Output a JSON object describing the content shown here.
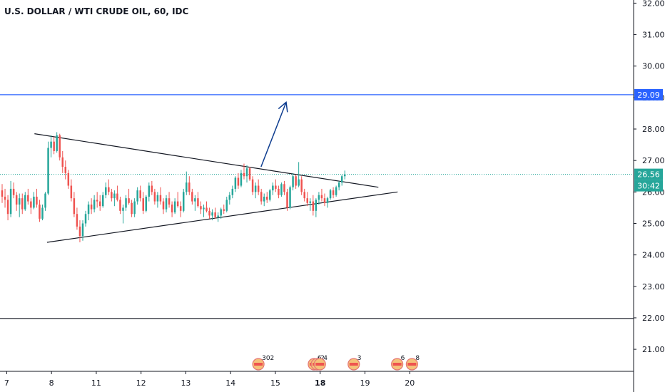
{
  "colors": {
    "up": "#26a69a",
    "down": "#ef5350",
    "resistance": "#2962ff",
    "arrow": "#0d3c8f",
    "lastPriceLine": "#26a69a",
    "support": "#131722",
    "triangle": "#131722",
    "axisLine": "#131722",
    "grid": "#ffffff"
  },
  "chart_data": {
    "type": "candlestick",
    "title": "U.S. DOLLAR / WTI CRUDE OIL, 60, IDC",
    "ylim": [
      20.3,
      32.1
    ],
    "xlim": [
      6.85,
      21.0
    ],
    "y_ticks": [
      21,
      22,
      23,
      24,
      25,
      26,
      27,
      28,
      29,
      30,
      31,
      32
    ],
    "y_tick_labels": [
      "21.00",
      "22.00",
      "23.00",
      "24.00",
      "25.00",
      "26.00",
      "27.00",
      "28.00",
      "29.00",
      "30.00",
      "31.00",
      "32.00"
    ],
    "x_ticks": [
      7,
      8,
      11,
      12,
      13,
      14,
      15,
      18,
      19,
      20
    ],
    "x_tick_labels": [
      "7",
      "8",
      "11",
      "12",
      "13",
      "14",
      "15",
      "18",
      "19",
      "20"
    ],
    "x_ticks_bold": [
      "18"
    ],
    "x_tick_positions": [
      7.0,
      8.0,
      9.0,
      10.0,
      11.0,
      12.0,
      13.0,
      14.0,
      15.0,
      16.0
    ],
    "candles": [
      [
        26.05,
        26.25,
        25.65,
        25.85
      ],
      [
        25.85,
        26.1,
        25.5,
        25.75
      ],
      [
        25.75,
        25.9,
        25.1,
        25.3
      ],
      [
        25.3,
        26.35,
        25.2,
        26.1
      ],
      [
        26.1,
        26.3,
        25.8,
        25.9
      ],
      [
        25.9,
        26.0,
        25.4,
        25.6
      ],
      [
        25.6,
        25.95,
        25.2,
        25.8
      ],
      [
        25.8,
        25.95,
        25.3,
        25.45
      ],
      [
        25.45,
        26.0,
        25.4,
        25.9
      ],
      [
        25.9,
        26.1,
        25.6,
        25.7
      ],
      [
        25.7,
        25.8,
        25.3,
        25.5
      ],
      [
        25.5,
        26.0,
        25.45,
        25.85
      ],
      [
        25.85,
        26.1,
        25.5,
        25.6
      ],
      [
        25.6,
        25.75,
        25.05,
        25.15
      ],
      [
        25.15,
        25.6,
        25.1,
        25.5
      ],
      [
        25.5,
        26.0,
        25.4,
        25.95
      ],
      [
        25.95,
        27.6,
        25.9,
        27.4
      ],
      [
        27.4,
        27.8,
        27.1,
        27.6
      ],
      [
        27.6,
        27.75,
        27.2,
        27.3
      ],
      [
        27.3,
        27.9,
        27.25,
        27.8
      ],
      [
        27.8,
        27.85,
        27.0,
        27.1
      ],
      [
        27.1,
        27.3,
        26.6,
        26.8
      ],
      [
        26.8,
        27.0,
        26.4,
        26.6
      ],
      [
        26.6,
        26.7,
        26.1,
        26.2
      ],
      [
        26.2,
        26.4,
        25.7,
        25.8
      ],
      [
        25.8,
        26.0,
        25.2,
        25.3
      ],
      [
        25.3,
        25.5,
        24.8,
        24.9
      ],
      [
        24.9,
        25.1,
        24.4,
        24.6
      ],
      [
        24.6,
        25.1,
        24.45,
        25.0
      ],
      [
        25.0,
        25.4,
        24.9,
        25.3
      ],
      [
        25.3,
        25.7,
        25.1,
        25.6
      ],
      [
        25.6,
        25.8,
        25.3,
        25.45
      ],
      [
        25.45,
        25.9,
        25.35,
        25.75
      ],
      [
        25.75,
        26.0,
        25.5,
        25.7
      ],
      [
        25.7,
        25.9,
        25.4,
        25.55
      ],
      [
        25.55,
        26.0,
        25.5,
        25.9
      ],
      [
        25.9,
        26.3,
        25.8,
        26.15
      ],
      [
        26.15,
        26.4,
        25.9,
        26.0
      ],
      [
        26.0,
        26.1,
        25.7,
        25.8
      ],
      [
        25.8,
        26.05,
        25.55,
        25.95
      ],
      [
        25.95,
        26.2,
        25.7,
        25.75
      ],
      [
        25.75,
        25.85,
        25.3,
        25.4
      ],
      [
        25.4,
        25.6,
        25.0,
        25.5
      ],
      [
        25.5,
        25.9,
        25.4,
        25.8
      ],
      [
        25.8,
        26.1,
        25.6,
        25.65
      ],
      [
        25.65,
        25.75,
        25.2,
        25.3
      ],
      [
        25.3,
        25.8,
        25.2,
        25.7
      ],
      [
        25.7,
        26.15,
        25.6,
        26.05
      ],
      [
        26.05,
        26.2,
        25.7,
        25.8
      ],
      [
        25.8,
        26.0,
        25.3,
        25.4
      ],
      [
        25.4,
        25.9,
        25.35,
        25.85
      ],
      [
        25.85,
        26.3,
        25.7,
        26.2
      ],
      [
        26.2,
        26.35,
        25.9,
        26.0
      ],
      [
        26.0,
        26.1,
        25.6,
        25.7
      ],
      [
        25.7,
        26.0,
        25.5,
        25.9
      ],
      [
        25.9,
        26.15,
        25.6,
        25.7
      ],
      [
        25.7,
        25.8,
        25.3,
        25.45
      ],
      [
        25.45,
        25.9,
        25.35,
        25.8
      ],
      [
        25.8,
        26.0,
        25.5,
        25.6
      ],
      [
        25.6,
        25.7,
        25.2,
        25.35
      ],
      [
        25.35,
        25.8,
        25.3,
        25.7
      ],
      [
        25.7,
        26.0,
        25.5,
        25.55
      ],
      [
        25.55,
        25.7,
        25.2,
        25.4
      ],
      [
        25.4,
        26.1,
        25.35,
        26.0
      ],
      [
        26.0,
        26.65,
        25.9,
        26.3
      ],
      [
        26.3,
        26.5,
        25.9,
        26.0
      ],
      [
        26.0,
        26.1,
        25.6,
        25.7
      ],
      [
        25.7,
        25.9,
        25.4,
        25.8
      ],
      [
        25.8,
        26.0,
        25.5,
        25.55
      ],
      [
        25.55,
        25.7,
        25.3,
        25.45
      ],
      [
        25.45,
        25.6,
        25.2,
        25.5
      ],
      [
        25.5,
        25.7,
        25.35,
        25.4
      ],
      [
        25.4,
        25.5,
        25.15,
        25.25
      ],
      [
        25.25,
        25.45,
        25.1,
        25.35
      ],
      [
        25.35,
        25.5,
        25.15,
        25.2
      ],
      [
        25.2,
        25.35,
        25.05,
        25.25
      ],
      [
        25.25,
        25.5,
        25.15,
        25.45
      ],
      [
        25.45,
        25.6,
        25.3,
        25.4
      ],
      [
        25.4,
        25.85,
        25.35,
        25.75
      ],
      [
        25.75,
        26.0,
        25.6,
        25.9
      ],
      [
        25.9,
        26.2,
        25.8,
        26.1
      ],
      [
        26.1,
        26.5,
        26.0,
        26.45
      ],
      [
        26.45,
        26.6,
        26.1,
        26.2
      ],
      [
        26.2,
        26.7,
        26.15,
        26.6
      ],
      [
        26.6,
        26.9,
        26.4,
        26.5
      ],
      [
        26.5,
        26.85,
        26.3,
        26.75
      ],
      [
        26.75,
        26.8,
        26.35,
        26.4
      ],
      [
        26.4,
        26.5,
        25.9,
        26.0
      ],
      [
        26.0,
        26.3,
        25.8,
        26.2
      ],
      [
        26.2,
        26.4,
        25.9,
        26.0
      ],
      [
        26.0,
        26.1,
        25.6,
        25.7
      ],
      [
        25.7,
        25.95,
        25.55,
        25.85
      ],
      [
        25.85,
        26.0,
        25.65,
        25.75
      ],
      [
        25.75,
        26.1,
        25.7,
        26.05
      ],
      [
        26.05,
        26.3,
        25.9,
        26.2
      ],
      [
        26.2,
        26.4,
        26.0,
        26.1
      ],
      [
        26.1,
        26.2,
        25.8,
        25.9
      ],
      [
        25.9,
        26.3,
        25.85,
        26.25
      ],
      [
        26.25,
        26.35,
        25.9,
        26.0
      ],
      [
        26.0,
        26.1,
        25.4,
        25.5
      ],
      [
        25.5,
        26.2,
        25.45,
        26.15
      ],
      [
        26.15,
        26.6,
        26.05,
        26.5
      ],
      [
        26.5,
        26.55,
        26.1,
        26.2
      ],
      [
        26.2,
        26.95,
        26.15,
        26.4
      ],
      [
        26.4,
        26.5,
        25.9,
        26.0
      ],
      [
        26.0,
        26.1,
        25.7,
        25.8
      ],
      [
        25.8,
        26.0,
        25.55,
        25.65
      ],
      [
        25.65,
        25.8,
        25.4,
        25.7
      ],
      [
        25.7,
        25.9,
        25.25,
        25.4
      ],
      [
        25.4,
        25.8,
        25.2,
        25.75
      ],
      [
        25.75,
        26.0,
        25.6,
        25.9
      ],
      [
        25.9,
        26.1,
        25.7,
        25.8
      ],
      [
        25.8,
        25.95,
        25.55,
        25.65
      ],
      [
        25.65,
        25.85,
        25.5,
        25.8
      ],
      [
        25.8,
        26.1,
        25.75,
        26.05
      ],
      [
        26.05,
        26.15,
        25.8,
        25.9
      ],
      [
        25.9,
        26.2,
        25.85,
        26.15
      ],
      [
        26.15,
        26.35,
        26.05,
        26.3
      ],
      [
        26.3,
        26.55,
        26.2,
        26.5
      ],
      [
        26.5,
        26.68,
        26.4,
        26.56
      ]
    ],
    "lines": {
      "resistance_level": 29.09,
      "support_level": 21.98,
      "last_price": 26.56,
      "triangle_upper": [
        [
          7.62,
          27.85
        ],
        [
          19.3,
          26.15
        ]
      ],
      "triangle_lower": [
        [
          7.9,
          24.4
        ],
        [
          19.73,
          26.0
        ]
      ],
      "arrow": [
        [
          14.68,
          26.8
        ],
        [
          15.72,
          28.85
        ]
      ]
    },
    "badges": [
      {
        "price": 29.09,
        "label": "29.09",
        "color": "#2962ff"
      },
      {
        "price": 26.56,
        "label": "26.56",
        "color": "#26a69a"
      }
    ],
    "countdown": "30:42",
    "events": [
      {
        "x": 14.62,
        "label": "302"
      },
      {
        "x": 17.58,
        "label": "6"
      },
      {
        "x": 17.78,
        "label": "2"
      },
      {
        "x": 17.98,
        "label": "4"
      },
      {
        "x": 18.75,
        "label": "3"
      },
      {
        "x": 19.72,
        "label": "6"
      },
      {
        "x": 20.05,
        "label": "8"
      }
    ]
  }
}
